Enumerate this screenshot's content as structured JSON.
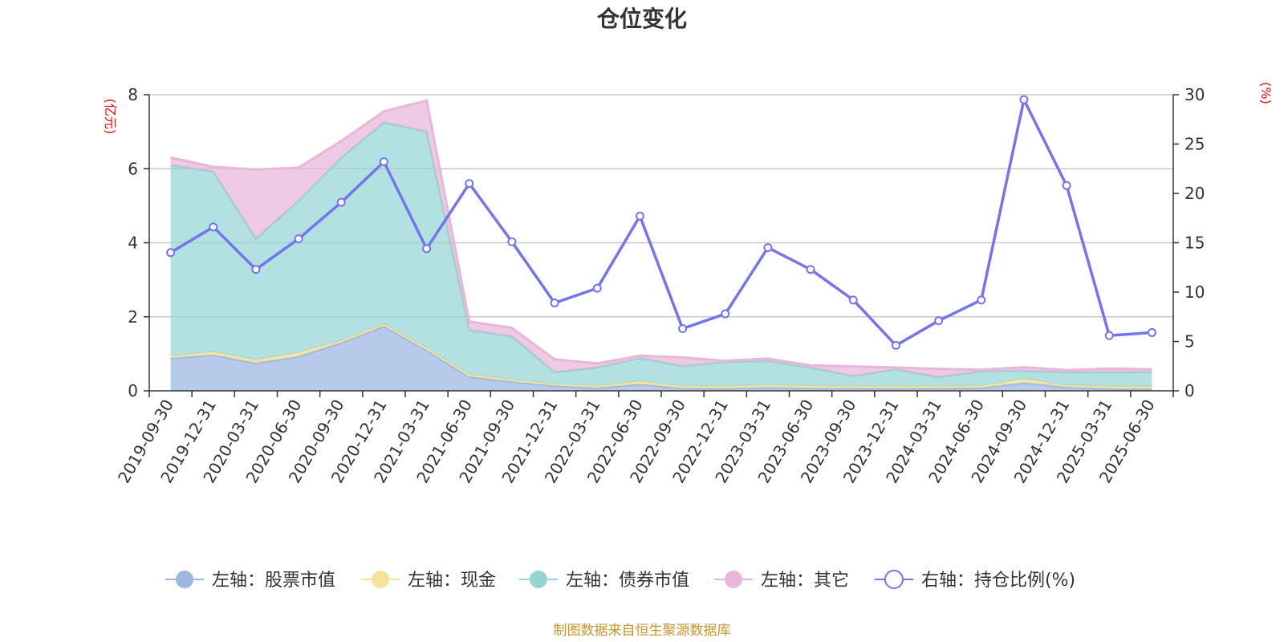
{
  "chart_data": {
    "type": "area",
    "title": "仓位变化",
    "left_axis_unit": "(亿元)",
    "right_axis_unit": "(%)",
    "categories": [
      "2019-09-30",
      "2019-12-31",
      "2020-03-31",
      "2020-06-30",
      "2020-09-30",
      "2020-12-31",
      "2021-03-31",
      "2021-06-30",
      "2021-09-30",
      "2021-12-31",
      "2022-03-31",
      "2022-06-30",
      "2022-09-30",
      "2022-12-31",
      "2023-03-31",
      "2023-06-30",
      "2023-09-30",
      "2023-12-31",
      "2024-03-31",
      "2024-06-30",
      "2024-09-30",
      "2024-12-31",
      "2025-03-31",
      "2025-06-30"
    ],
    "left_ylim": [
      0,
      8
    ],
    "left_ticks": [
      "0",
      "2",
      "4",
      "6",
      "8"
    ],
    "right_ylim": [
      0,
      30
    ],
    "right_ticks": [
      "0",
      "5",
      "10",
      "15",
      "20",
      "25",
      "30"
    ],
    "grid": true,
    "legend_position": "bottom",
    "series": [
      {
        "name": "左轴：股票市值",
        "axis": "left",
        "stacked": true,
        "color": "#9db6e0",
        "values": [
          0.88,
          0.97,
          0.75,
          0.93,
          1.3,
          1.75,
          1.1,
          0.38,
          0.25,
          0.14,
          0.08,
          0.18,
          0.07,
          0.06,
          0.09,
          0.07,
          0.07,
          0.06,
          0.07,
          0.08,
          0.22,
          0.1,
          0.06,
          0.05
        ]
      },
      {
        "name": "左轴：现金",
        "axis": "left",
        "stacked": true,
        "color": "#f7e49a",
        "values": [
          0.06,
          0.08,
          0.08,
          0.1,
          0.06,
          0.05,
          0.05,
          0.06,
          0.05,
          0.04,
          0.05,
          0.08,
          0.05,
          0.06,
          0.06,
          0.06,
          0.05,
          0.06,
          0.05,
          0.05,
          0.1,
          0.04,
          0.06,
          0.06
        ]
      },
      {
        "name": "左轴：债券市值",
        "axis": "left",
        "stacked": true,
        "color": "#96d4d4",
        "values": [
          5.16,
          4.87,
          3.28,
          4.1,
          4.94,
          5.45,
          5.85,
          1.2,
          1.17,
          0.32,
          0.5,
          0.62,
          0.55,
          0.66,
          0.66,
          0.5,
          0.28,
          0.46,
          0.25,
          0.4,
          0.22,
          0.36,
          0.38,
          0.4
        ]
      },
      {
        "name": "左轴：其它",
        "axis": "left",
        "stacked": true,
        "color": "#e8b6d9",
        "values": [
          0.2,
          0.13,
          1.87,
          0.9,
          0.45,
          0.3,
          0.84,
          0.23,
          0.23,
          0.35,
          0.11,
          0.07,
          0.23,
          0.03,
          0.06,
          0.06,
          0.26,
          0.05,
          0.22,
          0.04,
          0.1,
          0.06,
          0.1,
          0.07
        ]
      },
      {
        "name": "右轴：持仓比例(%)",
        "axis": "right",
        "type": "line",
        "color": "#7474f0",
        "values": [
          14.0,
          16.6,
          12.3,
          15.4,
          19.1,
          23.2,
          14.4,
          21.0,
          15.1,
          8.9,
          10.4,
          17.7,
          6.3,
          7.8,
          14.5,
          12.3,
          9.2,
          4.6,
          7.1,
          9.2,
          29.5,
          20.8,
          5.6,
          5.9
        ]
      }
    ]
  },
  "footer": {
    "source": "制图数据来自恒生聚源数据库"
  }
}
